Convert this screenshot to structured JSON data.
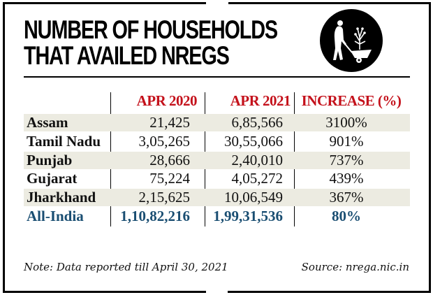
{
  "title": {
    "line1": "NUMBER OF HOUSEHOLDS",
    "line2": "THAT AVAILED NREGS",
    "icon": "worker-wheelbarrow-icon"
  },
  "colors": {
    "header_red": "#c4111b",
    "total_blue": "#1a4e72",
    "row_shade": "#ecebe1"
  },
  "chart_data": {
    "type": "table",
    "title": "NUMBER OF HOUSEHOLDS THAT AVAILED NREGS",
    "columns": [
      "",
      "APR 2020",
      "APR 2021",
      "INCREASE (%)"
    ],
    "rows": [
      {
        "state": "Assam",
        "apr2020": "21,425",
        "apr2021": "6,85,566",
        "increase": "3100%",
        "shaded": true
      },
      {
        "state": "Tamil Nadu",
        "apr2020": "3,05,265",
        "apr2021": "30,55,066",
        "increase": "901%",
        "shaded": false
      },
      {
        "state": "Punjab",
        "apr2020": "28,666",
        "apr2021": "2,40,010",
        "increase": "737%",
        "shaded": true
      },
      {
        "state": "Gujarat",
        "apr2020": "75,224",
        "apr2021": "4,05,272",
        "increase": "439%",
        "shaded": false
      },
      {
        "state": "Jharkhand",
        "apr2020": "2,15,625",
        "apr2021": "10,06,549",
        "increase": "367%",
        "shaded": true
      }
    ],
    "total": {
      "state": "All-India",
      "apr2020": "1,10,82,216",
      "apr2021": "1,99,31,536",
      "increase": "80%"
    }
  },
  "footer": {
    "note": "Note: Data reported till April 30, 2021",
    "source": "Source: nrega.nic.in"
  }
}
